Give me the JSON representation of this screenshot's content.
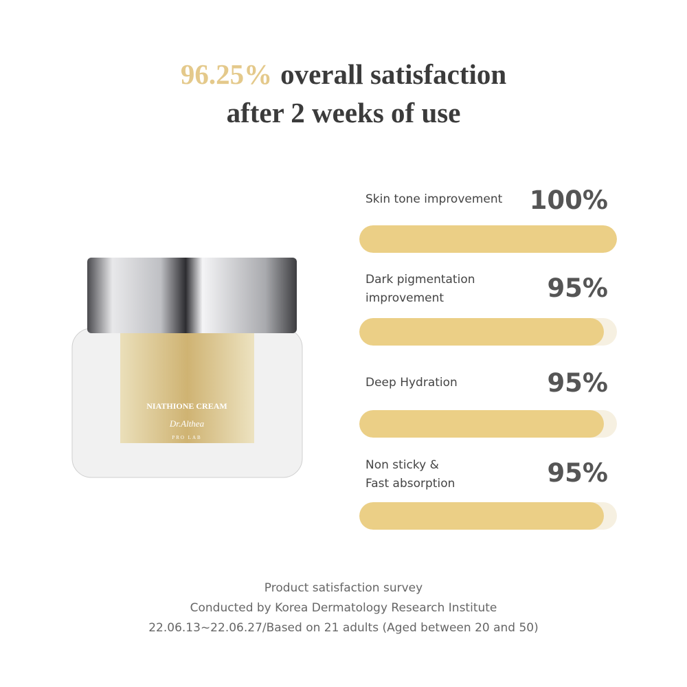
{
  "headline": {
    "highlight": "96.25%",
    "line1": "overall satisfaction",
    "line2": "after 2 weeks of use"
  },
  "chart_data": {
    "type": "bar",
    "categories": [
      "Skin tone improvement",
      "Dark pigmentation improvement",
      "Deep Hydration",
      "Non sticky & Fast absorption"
    ],
    "values": [
      100,
      95,
      95,
      95
    ],
    "value_labels": [
      "100%",
      "95%",
      "95%",
      "95%"
    ],
    "xlim": [
      0,
      100
    ],
    "color": "#ebcf86",
    "track_color": "#f6f0e1"
  },
  "product": {
    "name": "NIATHIONE CREAM",
    "brand": "Dr.Althea",
    "sub": "PRO LAB"
  },
  "footnote": [
    "Product satisfaction survey",
    "Conducted by Korea Dermatology Research Institute",
    "22.06.13~22.06.27/Based on 21 adults (Aged between 20 and 50)"
  ]
}
